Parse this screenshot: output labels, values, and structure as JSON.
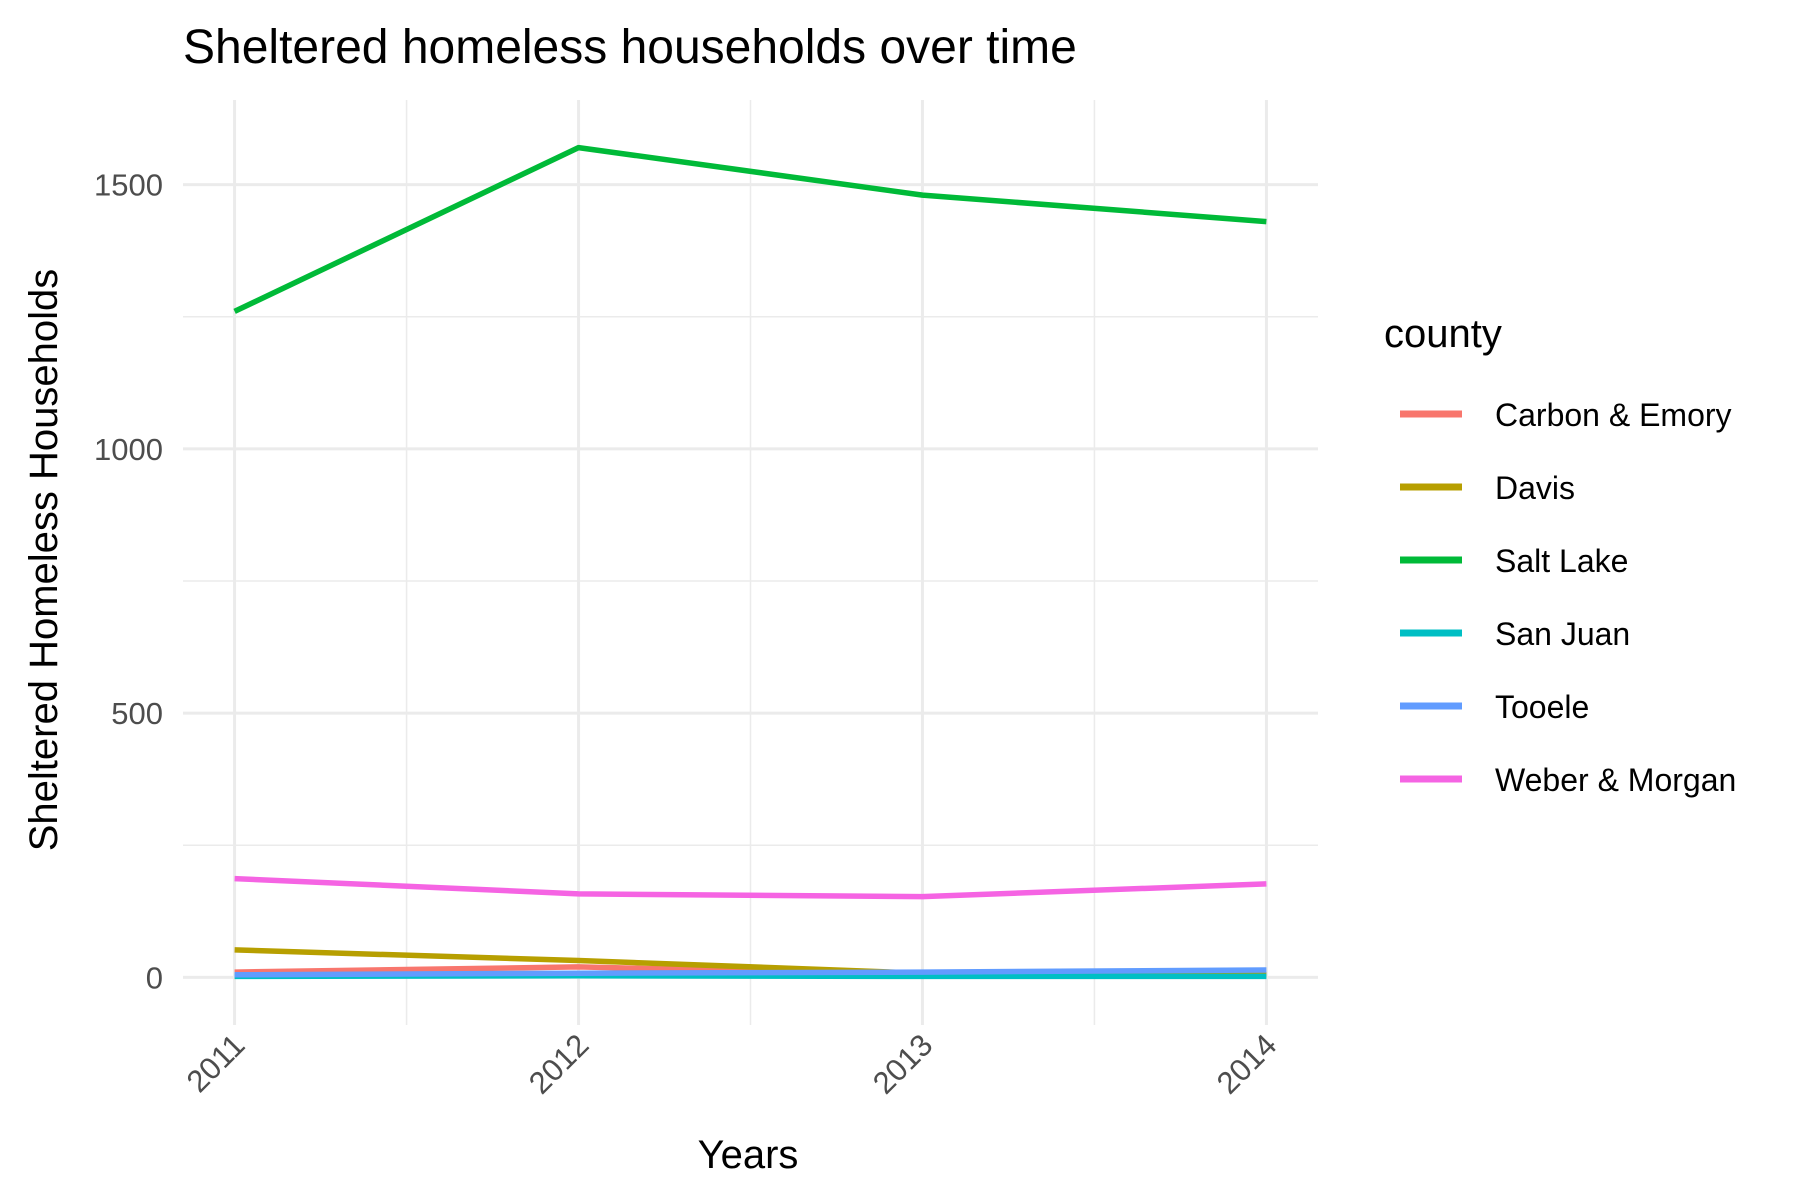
{
  "chart_data": {
    "type": "line",
    "title": "Sheltered homeless households over time",
    "xlabel": "Years",
    "ylabel": "Sheltered Homeless Households",
    "x": [
      2011,
      2012,
      2013,
      2014
    ],
    "x_ticks": [
      "2011",
      "2012",
      "2013",
      "2014"
    ],
    "xlim": [
      2010.85,
      2014.15
    ],
    "ylim": [
      -90,
      1660
    ],
    "y_ticks": [
      0,
      500,
      1000,
      1500
    ],
    "y_tick_labels": [
      "0",
      "500",
      "1000",
      "1500"
    ],
    "grid": true,
    "legend_title": "county",
    "legend_position": "right",
    "series": [
      {
        "name": "Carbon & Emory",
        "color": "#F8766D",
        "values": [
          10,
          20,
          5,
          5
        ]
      },
      {
        "name": "Davis",
        "color": "#B79F00",
        "values": [
          52,
          32,
          8,
          5
        ]
      },
      {
        "name": "Salt Lake",
        "color": "#00BA38",
        "values": [
          1260,
          1570,
          1480,
          1430
        ]
      },
      {
        "name": "San Juan",
        "color": "#00BFC4",
        "values": [
          2,
          3,
          2,
          2
        ]
      },
      {
        "name": "Tooele",
        "color": "#619CFF",
        "values": [
          5,
          8,
          10,
          14
        ]
      },
      {
        "name": "Weber & Morgan",
        "color": "#F564E3",
        "values": [
          187,
          158,
          153,
          177
        ]
      }
    ]
  }
}
